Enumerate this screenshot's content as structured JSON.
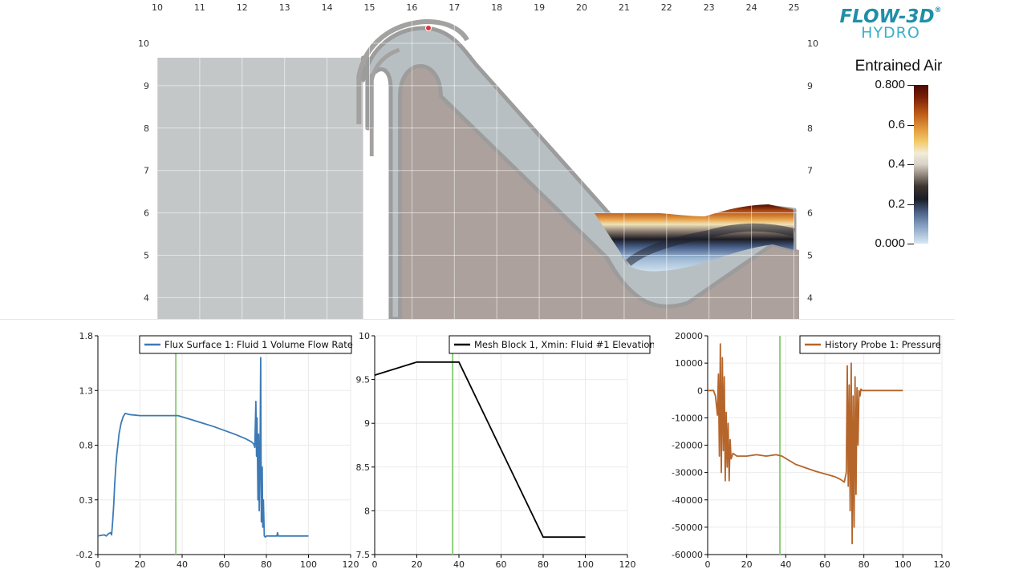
{
  "brand": {
    "line1": "FLOW-3D",
    "registered": "®",
    "line2": "HYDRO"
  },
  "colorbar": {
    "title": "Entrained Air",
    "labels": [
      "0.800",
      "0.6",
      "0.4",
      "0.2",
      "0.000"
    ],
    "range": [
      0,
      0.8
    ]
  },
  "simulation": {
    "x_ticks": [
      "10",
      "11",
      "12",
      "13",
      "14",
      "15",
      "16",
      "17",
      "18",
      "19",
      "20",
      "21",
      "22",
      "23",
      "24",
      "25"
    ],
    "y_ticks": [
      "10",
      "9",
      "8",
      "7",
      "6",
      "5",
      "4"
    ],
    "x_range": [
      10,
      25
    ],
    "y_range": [
      3.7,
      10.6
    ]
  },
  "chart_data": [
    {
      "type": "line",
      "legend": "Flux Surface 1: Fluid 1 Volume Flow Rate",
      "color": "#3d7ab5",
      "xlim": [
        0,
        120
      ],
      "ylim": [
        -0.2,
        1.8
      ],
      "x_ticks": [
        0,
        20,
        40,
        60,
        80,
        100,
        120
      ],
      "y_ticks": [
        -0.2,
        0.3,
        0.8,
        1.3,
        1.8
      ],
      "y_tick_labels": [
        "-0.2",
        "0.3",
        "0.8",
        "1.3",
        "1.8"
      ],
      "time_marker": 37,
      "x": [
        0,
        3,
        4,
        5,
        6,
        6.5,
        7,
        7.5,
        8,
        8.5,
        9,
        9.5,
        10,
        11,
        12,
        13,
        15,
        20,
        30,
        38,
        45,
        55,
        65,
        70,
        73,
        74,
        74.5,
        75,
        75.3,
        75.6,
        76,
        76.3,
        76.6,
        77,
        77.3,
        77.6,
        78,
        78.3,
        78.6,
        79,
        79.5,
        80,
        85,
        85.3,
        85.6,
        90,
        100
      ],
      "y": [
        -0.03,
        -0.02,
        -0.03,
        -0.01,
        0.0,
        -0.02,
        0.1,
        0.25,
        0.45,
        0.6,
        0.72,
        0.8,
        0.9,
        1.0,
        1.06,
        1.09,
        1.08,
        1.07,
        1.07,
        1.07,
        1.03,
        0.97,
        0.9,
        0.86,
        0.83,
        0.81,
        0.78,
        1.2,
        0.7,
        1.05,
        0.3,
        0.9,
        0.2,
        0.7,
        1.6,
        0.1,
        0.6,
        0.05,
        0.3,
        -0.03,
        -0.04,
        -0.03,
        -0.03,
        0.0,
        -0.03,
        -0.03,
        -0.03
      ]
    },
    {
      "type": "line",
      "legend": "Mesh Block 1, Xmin: Fluid #1 Elevation",
      "color": "#000000",
      "xlim": [
        0,
        120
      ],
      "ylim": [
        7.5,
        10
      ],
      "x_ticks": [
        0,
        20,
        40,
        60,
        80,
        100,
        120
      ],
      "y_ticks": [
        7.5,
        8,
        8.5,
        9,
        9.5,
        10
      ],
      "y_tick_labels": [
        "7.5",
        "8",
        "8.5",
        "9",
        "9.5",
        "10"
      ],
      "time_marker": 37,
      "x": [
        0,
        20,
        40,
        80,
        100
      ],
      "y": [
        9.55,
        9.7,
        9.7,
        7.7,
        7.7
      ]
    },
    {
      "type": "line",
      "legend": "History Probe 1: Pressure",
      "color": "#b5652a",
      "xlim": [
        0,
        120
      ],
      "ylim": [
        -60000,
        20000
      ],
      "x_ticks": [
        0,
        20,
        40,
        60,
        80,
        100,
        120
      ],
      "y_ticks": [
        -60000,
        -50000,
        -40000,
        -30000,
        -20000,
        -10000,
        0,
        10000,
        20000
      ],
      "y_tick_labels": [
        "-60000",
        "-50000",
        "-40000",
        "-30000",
        "-20000",
        "-10000",
        "0",
        "10000",
        "20000"
      ],
      "time_marker": 37,
      "x": [
        0,
        3,
        4,
        5,
        5.5,
        6,
        6.5,
        7,
        7.5,
        8,
        8.5,
        9,
        9.5,
        10,
        10.5,
        11,
        11.5,
        12,
        13,
        15,
        20,
        25,
        30,
        35,
        38,
        45,
        55,
        65,
        68,
        70,
        71,
        71.5,
        72,
        72.5,
        73,
        73.5,
        74,
        74.5,
        75,
        75.5,
        76,
        76.5,
        77,
        77.5,
        78,
        78.5,
        79,
        80,
        90,
        100
      ],
      "y": [
        0,
        0,
        -2000,
        -9000,
        6000,
        -24000,
        17000,
        -30000,
        12000,
        -22000,
        5000,
        -33000,
        -8000,
        -28000,
        -12000,
        -33000,
        -18000,
        -25000,
        -23000,
        -24000,
        -24000,
        -23500,
        -24000,
        -23500,
        -24000,
        -27000,
        -29500,
        -31500,
        -32500,
        -33500,
        -30000,
        9000,
        -35000,
        2000,
        -44000,
        10000,
        -56000,
        -2000,
        -50000,
        5000,
        -38000,
        1000,
        -20000,
        0,
        -2000,
        500,
        0,
        0,
        0,
        0
      ]
    }
  ]
}
